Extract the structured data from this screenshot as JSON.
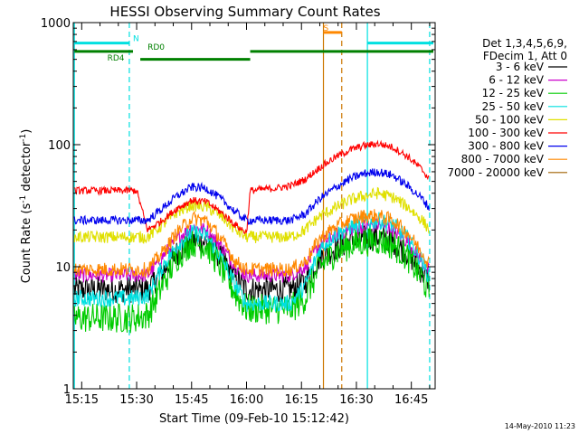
{
  "chart_data": {
    "type": "line",
    "title": "HESSI Observing Summary Count Rates",
    "xlabel": "Start Time (09-Feb-10 15:12:42)",
    "ylabel": "Count Rate (s",
    "ylabel_sup": "-1",
    "ylabel_mid": " detector",
    "ylabel_end": ")",
    "y_scale": "log",
    "ylim": [
      1,
      1000
    ],
    "xlim": [
      "15:12:42",
      "16:51:30"
    ],
    "x_ticks": [
      "15:15",
      "15:30",
      "15:45",
      "16:00",
      "16:15",
      "16:30",
      "16:45"
    ],
    "y_ticks": [
      "1",
      "10",
      "100",
      "1000"
    ],
    "grid": false,
    "legend_header": [
      "Det 1,3,4,5,6,9,",
      "FDecim 1, Att 0"
    ],
    "legend_placement": "right",
    "series": [
      {
        "name": "3 - 6 keV",
        "color": "#000000",
        "x": [
          "15:13",
          "15:29",
          "15:33",
          "15:37",
          "15:41",
          "15:45",
          "15:49",
          "15:53",
          "15:57",
          "16:00",
          "16:04",
          "16:08",
          "16:12",
          "16:16",
          "16:20",
          "16:24",
          "16:28",
          "16:32",
          "16:36",
          "16:40",
          "16:44",
          "16:48",
          "16:50"
        ],
        "values": [
          6.5,
          6.5,
          6.5,
          9,
          13,
          16.5,
          16,
          12,
          8,
          6.5,
          6.5,
          6.5,
          6.5,
          7.5,
          12,
          14,
          16,
          17,
          17.5,
          16,
          13,
          9,
          7.5
        ]
      },
      {
        "name": "6 - 12 keV",
        "color": "#cc00cc",
        "x": [
          "15:13",
          "15:29",
          "15:33",
          "15:37",
          "15:41",
          "15:45",
          "15:49",
          "15:53",
          "15:57",
          "16:00",
          "16:04",
          "16:08",
          "16:12",
          "16:16",
          "16:20",
          "16:24",
          "16:28",
          "16:32",
          "16:36",
          "16:40",
          "16:44",
          "16:48",
          "16:50"
        ],
        "values": [
          8.5,
          8.5,
          8.5,
          12,
          17,
          21,
          20,
          15,
          10,
          8.5,
          8.5,
          8.5,
          8.5,
          10,
          15,
          18,
          20,
          21.5,
          22,
          20,
          16,
          11,
          9
        ]
      },
      {
        "name": "12 - 25 keV",
        "color": "#00cc00",
        "x": [
          "15:13",
          "15:29",
          "15:33",
          "15:37",
          "15:41",
          "15:45",
          "15:49",
          "15:53",
          "15:57",
          "16:00",
          "16:04",
          "16:08",
          "16:12",
          "16:16",
          "16:20",
          "16:24",
          "16:28",
          "16:32",
          "16:36",
          "16:40",
          "16:44",
          "16:48",
          "16:50"
        ],
        "values": [
          3.8,
          3.8,
          4,
          7,
          12,
          16,
          15,
          10,
          6,
          4.5,
          4.5,
          4.5,
          4.5,
          5.5,
          10,
          13,
          15,
          16,
          16.5,
          15,
          12,
          8,
          6
        ]
      },
      {
        "name": "25 - 50 keV",
        "color": "#00e0e0",
        "x": [
          "15:13",
          "15:29",
          "15:33",
          "15:37",
          "15:41",
          "15:45",
          "15:49",
          "15:53",
          "15:57",
          "16:00",
          "16:04",
          "16:08",
          "16:12",
          "16:16",
          "16:20",
          "16:24",
          "16:28",
          "16:32",
          "16:36",
          "16:40",
          "16:44",
          "16:48",
          "16:50"
        ],
        "values": [
          5.5,
          5.5,
          5.8,
          10,
          15,
          19,
          18,
          12,
          7,
          5,
          5,
          5,
          5,
          7,
          14,
          18,
          21,
          23,
          24,
          22,
          17,
          11,
          8
        ]
      },
      {
        "name": "50 - 100 keV",
        "color": "#e0e000",
        "x": [
          "15:13",
          "15:29",
          "15:33",
          "15:37",
          "15:41",
          "15:45",
          "15:49",
          "15:53",
          "15:57",
          "16:00",
          "16:04",
          "16:08",
          "16:12",
          "16:16",
          "16:20",
          "16:24",
          "16:28",
          "16:32",
          "16:36",
          "16:40",
          "16:44",
          "16:48",
          "16:50"
        ],
        "values": [
          17.5,
          17.5,
          17.5,
          22,
          28,
          32,
          31,
          26,
          20,
          17.5,
          17.5,
          17.5,
          17.5,
          20,
          26,
          30,
          35,
          38,
          40,
          37,
          31,
          24,
          20
        ]
      },
      {
        "name": "100 - 300 keV",
        "color": "#ff0000",
        "x": [
          "15:13",
          "15:29",
          "15:30",
          "15:33",
          "15:37",
          "15:41",
          "15:45",
          "15:49",
          "15:53",
          "15:57",
          "16:00",
          "16:01",
          "16:04",
          "16:08",
          "16:12",
          "16:16",
          "16:20",
          "16:24",
          "16:28",
          "16:32",
          "16:36",
          "16:40",
          "16:44",
          "16:48",
          "16:50"
        ],
        "values": [
          42,
          42,
          42,
          20,
          24,
          30,
          35,
          34,
          28,
          22,
          19,
          42,
          43,
          44,
          46,
          52,
          65,
          78,
          90,
          98,
          102,
          95,
          80,
          62,
          52
        ]
      },
      {
        "name": "300 - 800 keV",
        "color": "#0000ee",
        "x": [
          "15:13",
          "15:29",
          "15:33",
          "15:37",
          "15:41",
          "15:45",
          "15:49",
          "15:53",
          "15:57",
          "16:00",
          "16:04",
          "16:08",
          "16:12",
          "16:16",
          "16:20",
          "16:24",
          "16:28",
          "16:32",
          "16:36",
          "16:40",
          "16:44",
          "16:48",
          "16:50"
        ],
        "values": [
          24,
          24,
          24,
          30,
          38,
          45,
          44,
          36,
          28,
          24,
          24,
          24,
          24,
          27,
          36,
          44,
          52,
          58,
          60,
          56,
          46,
          36,
          30
        ]
      },
      {
        "name": "800 - 7000 keV",
        "color": "#ff8800",
        "x": [
          "15:13",
          "15:29",
          "15:33",
          "15:37",
          "15:41",
          "15:45",
          "15:49",
          "15:53",
          "15:57",
          "16:00",
          "16:04",
          "16:08",
          "16:12",
          "16:16",
          "16:20",
          "16:24",
          "16:28",
          "16:32",
          "16:36",
          "16:40",
          "16:44",
          "16:48",
          "16:50"
        ],
        "values": [
          9.5,
          9.5,
          9.5,
          13,
          19,
          25,
          24,
          17,
          11,
          9.5,
          9.5,
          9.5,
          9.5,
          11,
          17,
          21,
          24,
          26,
          26,
          24,
          19,
          13,
          10.5
        ]
      },
      {
        "name": "7000 - 20000 keV",
        "color": "#a06000",
        "x": [],
        "values": []
      }
    ],
    "annotations": {
      "bars": [
        {
          "label": "N",
          "color": "#00e0e0",
          "from": "15:13",
          "to": "15:28",
          "level": 680,
          "label_at": "15:28"
        },
        {
          "label": "N",
          "color": "#00e0e0",
          "from": "16:33",
          "to": "16:51",
          "level": 680,
          "label_at": ""
        },
        {
          "label": "S",
          "color": "#ff8800",
          "from": "16:21",
          "to": "16:26",
          "level": 830,
          "label_at": "16:20"
        },
        {
          "label": "RD0",
          "color": "#008000",
          "from": "16:01",
          "to": "16:51",
          "level": 580,
          "label_at": "15:32"
        },
        {
          "label": "RD4",
          "color": "#008000",
          "from": "15:13",
          "to": "15:29",
          "level": 580,
          "label_at": "15:21"
        },
        {
          "label": "",
          "color": "#008000",
          "from": "15:31",
          "to": "16:01",
          "level": 500,
          "label_at": ""
        }
      ],
      "vlines": [
        {
          "t": "15:13",
          "color": "#00e0e0",
          "style": "solid"
        },
        {
          "t": "15:28",
          "color": "#00e0e0",
          "style": "dashed"
        },
        {
          "t": "16:33",
          "color": "#00e0e0",
          "style": "solid"
        },
        {
          "t": "16:50",
          "color": "#00e0e0",
          "style": "dashed"
        },
        {
          "t": "16:21",
          "color": "#cc7700",
          "style": "solid"
        },
        {
          "t": "16:26",
          "color": "#cc7700",
          "style": "dashed"
        }
      ]
    },
    "footer_date": "14-May-2010 11:23"
  }
}
